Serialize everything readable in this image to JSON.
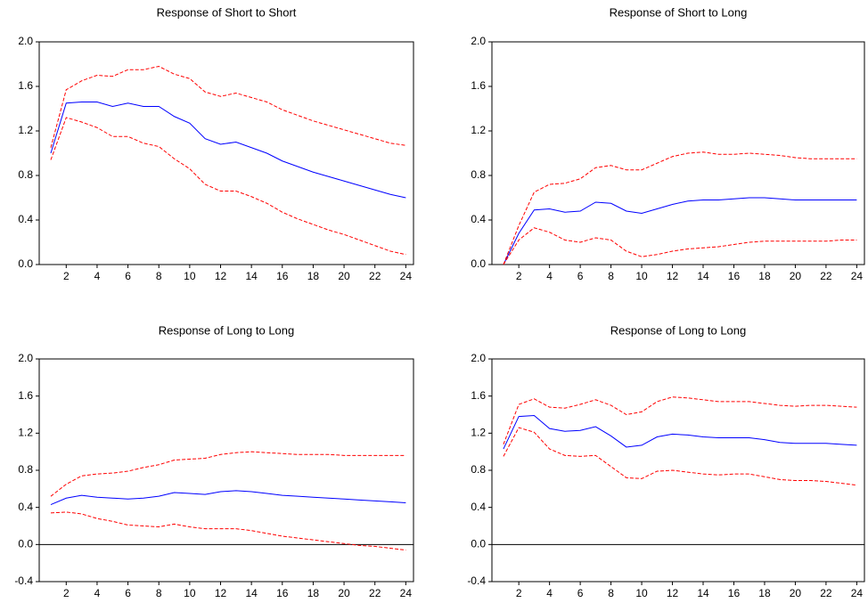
{
  "chart_data": [
    {
      "type": "line",
      "title": "Response of Short to Short",
      "x": [
        1,
        2,
        3,
        4,
        5,
        6,
        7,
        8,
        9,
        10,
        11,
        12,
        13,
        14,
        15,
        16,
        17,
        18,
        19,
        20,
        21,
        22,
        23,
        24
      ],
      "xlim": [
        0.25,
        24.5
      ],
      "xticks": [
        2,
        4,
        6,
        8,
        10,
        12,
        14,
        16,
        18,
        20,
        22,
        24
      ],
      "ylim": [
        0,
        2
      ],
      "yticks": [
        {
          "value": 0,
          "label": "0.0"
        },
        0.4,
        0.8,
        1.2,
        1.6,
        {
          "value": 2,
          "label": "2.0"
        }
      ],
      "zero_line": false,
      "series": [
        {
          "color": "#0000ff",
          "line_style": "solid",
          "values": [
            1.0,
            1.45,
            1.46,
            1.46,
            1.42,
            1.45,
            1.42,
            1.42,
            1.33,
            1.27,
            1.13,
            1.08,
            1.1,
            1.05,
            1.0,
            0.93,
            0.88,
            0.83,
            0.79,
            0.75,
            0.71,
            0.67,
            0.63,
            0.6
          ]
        },
        {
          "color": "#ff0000",
          "line_style": "dashed",
          "values": [
            1.05,
            1.57,
            1.65,
            1.7,
            1.69,
            1.75,
            1.75,
            1.78,
            1.71,
            1.67,
            1.55,
            1.51,
            1.54,
            1.5,
            1.46,
            1.39,
            1.34,
            1.29,
            1.25,
            1.21,
            1.17,
            1.13,
            1.09,
            1.07
          ]
        },
        {
          "color": "#ff0000",
          "line_style": "dashed",
          "values": [
            0.94,
            1.32,
            1.28,
            1.23,
            1.15,
            1.15,
            1.09,
            1.06,
            0.95,
            0.86,
            0.72,
            0.66,
            0.66,
            0.61,
            0.55,
            0.47,
            0.41,
            0.36,
            0.31,
            0.27,
            0.22,
            0.17,
            0.12,
            0.09
          ]
        }
      ]
    },
    {
      "type": "line",
      "title": "Response of Short to Long",
      "x": [
        1,
        2,
        3,
        4,
        5,
        6,
        7,
        8,
        9,
        10,
        11,
        12,
        13,
        14,
        15,
        16,
        17,
        18,
        19,
        20,
        21,
        22,
        23,
        24
      ],
      "xlim": [
        0.25,
        24.5
      ],
      "xticks": [
        2,
        4,
        6,
        8,
        10,
        12,
        14,
        16,
        18,
        20,
        22,
        24
      ],
      "ylim": [
        0,
        2
      ],
      "yticks": [
        {
          "value": 0,
          "label": "0.0"
        },
        0.4,
        0.8,
        1.2,
        1.6,
        {
          "value": 2,
          "label": "2.0"
        }
      ],
      "zero_line": false,
      "series": [
        {
          "color": "#0000ff",
          "line_style": "solid",
          "values": [
            0,
            0.28,
            0.49,
            0.5,
            0.47,
            0.48,
            0.56,
            0.55,
            0.48,
            0.46,
            0.5,
            0.54,
            0.57,
            0.58,
            0.58,
            0.59,
            0.6,
            0.6,
            0.59,
            0.58,
            0.58,
            0.58,
            0.58,
            0.58
          ]
        },
        {
          "color": "#ff0000",
          "line_style": "dashed",
          "values": [
            0,
            0.35,
            0.65,
            0.72,
            0.73,
            0.77,
            0.87,
            0.89,
            0.85,
            0.85,
            0.91,
            0.97,
            1.0,
            1.01,
            0.99,
            0.99,
            1.0,
            0.99,
            0.98,
            0.96,
            0.95,
            0.95,
            0.95,
            0.95
          ]
        },
        {
          "color": "#ff0000",
          "line_style": "dashed",
          "values": [
            0,
            0.22,
            0.33,
            0.29,
            0.22,
            0.2,
            0.24,
            0.22,
            0.12,
            0.07,
            0.09,
            0.12,
            0.14,
            0.15,
            0.16,
            0.18,
            0.2,
            0.21,
            0.21,
            0.21,
            0.21,
            0.21,
            0.22,
            0.22
          ]
        }
      ]
    },
    {
      "type": "line",
      "title": "Response of Long to Long",
      "x": [
        1,
        2,
        3,
        4,
        5,
        6,
        7,
        8,
        9,
        10,
        11,
        12,
        13,
        14,
        15,
        16,
        17,
        18,
        19,
        20,
        21,
        22,
        23,
        24
      ],
      "xlim": [
        0.25,
        24.5
      ],
      "xticks": [
        2,
        4,
        6,
        8,
        10,
        12,
        14,
        16,
        18,
        20,
        22,
        24
      ],
      "ylim": [
        -0.4,
        2
      ],
      "yticks": [
        -0.4,
        {
          "value": 0,
          "label": "0.0"
        },
        0.4,
        0.8,
        1.2,
        1.6,
        {
          "value": 2,
          "label": "2.0"
        }
      ],
      "zero_line": true,
      "series": [
        {
          "color": "#0000ff",
          "line_style": "solid",
          "values": [
            0.43,
            0.5,
            0.53,
            0.51,
            0.5,
            0.49,
            0.5,
            0.52,
            0.56,
            0.55,
            0.54,
            0.57,
            0.58,
            0.57,
            0.55,
            0.53,
            0.52,
            0.51,
            0.5,
            0.49,
            0.48,
            0.47,
            0.46,
            0.45
          ]
        },
        {
          "color": "#ff0000",
          "line_style": "dashed",
          "values": [
            0.52,
            0.65,
            0.74,
            0.76,
            0.77,
            0.79,
            0.83,
            0.86,
            0.91,
            0.92,
            0.93,
            0.97,
            0.99,
            1.0,
            0.99,
            0.98,
            0.97,
            0.97,
            0.97,
            0.96,
            0.96,
            0.96,
            0.96,
            0.96
          ]
        },
        {
          "color": "#ff0000",
          "line_style": "dashed",
          "values": [
            0.34,
            0.35,
            0.33,
            0.28,
            0.25,
            0.21,
            0.2,
            0.19,
            0.22,
            0.19,
            0.17,
            0.17,
            0.17,
            0.15,
            0.12,
            0.09,
            0.07,
            0.05,
            0.03,
            0.01,
            -0.01,
            -0.02,
            -0.04,
            -0.06
          ]
        }
      ]
    },
    {
      "type": "line",
      "title": "Response of Long to Long",
      "x": [
        1,
        2,
        3,
        4,
        5,
        6,
        7,
        8,
        9,
        10,
        11,
        12,
        13,
        14,
        15,
        16,
        17,
        18,
        19,
        20,
        21,
        22,
        23,
        24
      ],
      "xlim": [
        0.25,
        24.5
      ],
      "xticks": [
        2,
        4,
        6,
        8,
        10,
        12,
        14,
        16,
        18,
        20,
        22,
        24
      ],
      "ylim": [
        -0.4,
        2
      ],
      "yticks": [
        -0.4,
        {
          "value": 0,
          "label": "0.0"
        },
        0.4,
        0.8,
        1.2,
        1.6,
        {
          "value": 2,
          "label": "2.0"
        }
      ],
      "zero_line": true,
      "series": [
        {
          "color": "#0000ff",
          "line_style": "solid",
          "values": [
            1.03,
            1.38,
            1.39,
            1.25,
            1.22,
            1.23,
            1.27,
            1.17,
            1.05,
            1.07,
            1.16,
            1.19,
            1.18,
            1.16,
            1.15,
            1.15,
            1.15,
            1.13,
            1.1,
            1.09,
            1.09,
            1.09,
            1.08,
            1.07
          ]
        },
        {
          "color": "#ff0000",
          "line_style": "dashed",
          "values": [
            1.08,
            1.51,
            1.57,
            1.48,
            1.47,
            1.51,
            1.56,
            1.5,
            1.4,
            1.43,
            1.54,
            1.59,
            1.58,
            1.56,
            1.54,
            1.54,
            1.54,
            1.52,
            1.5,
            1.49,
            1.5,
            1.5,
            1.49,
            1.48
          ]
        },
        {
          "color": "#ff0000",
          "line_style": "dashed",
          "values": [
            0.95,
            1.26,
            1.21,
            1.03,
            0.96,
            0.95,
            0.96,
            0.84,
            0.72,
            0.71,
            0.79,
            0.8,
            0.78,
            0.76,
            0.75,
            0.76,
            0.76,
            0.73,
            0.7,
            0.69,
            0.69,
            0.68,
            0.66,
            0.64
          ]
        }
      ]
    }
  ]
}
